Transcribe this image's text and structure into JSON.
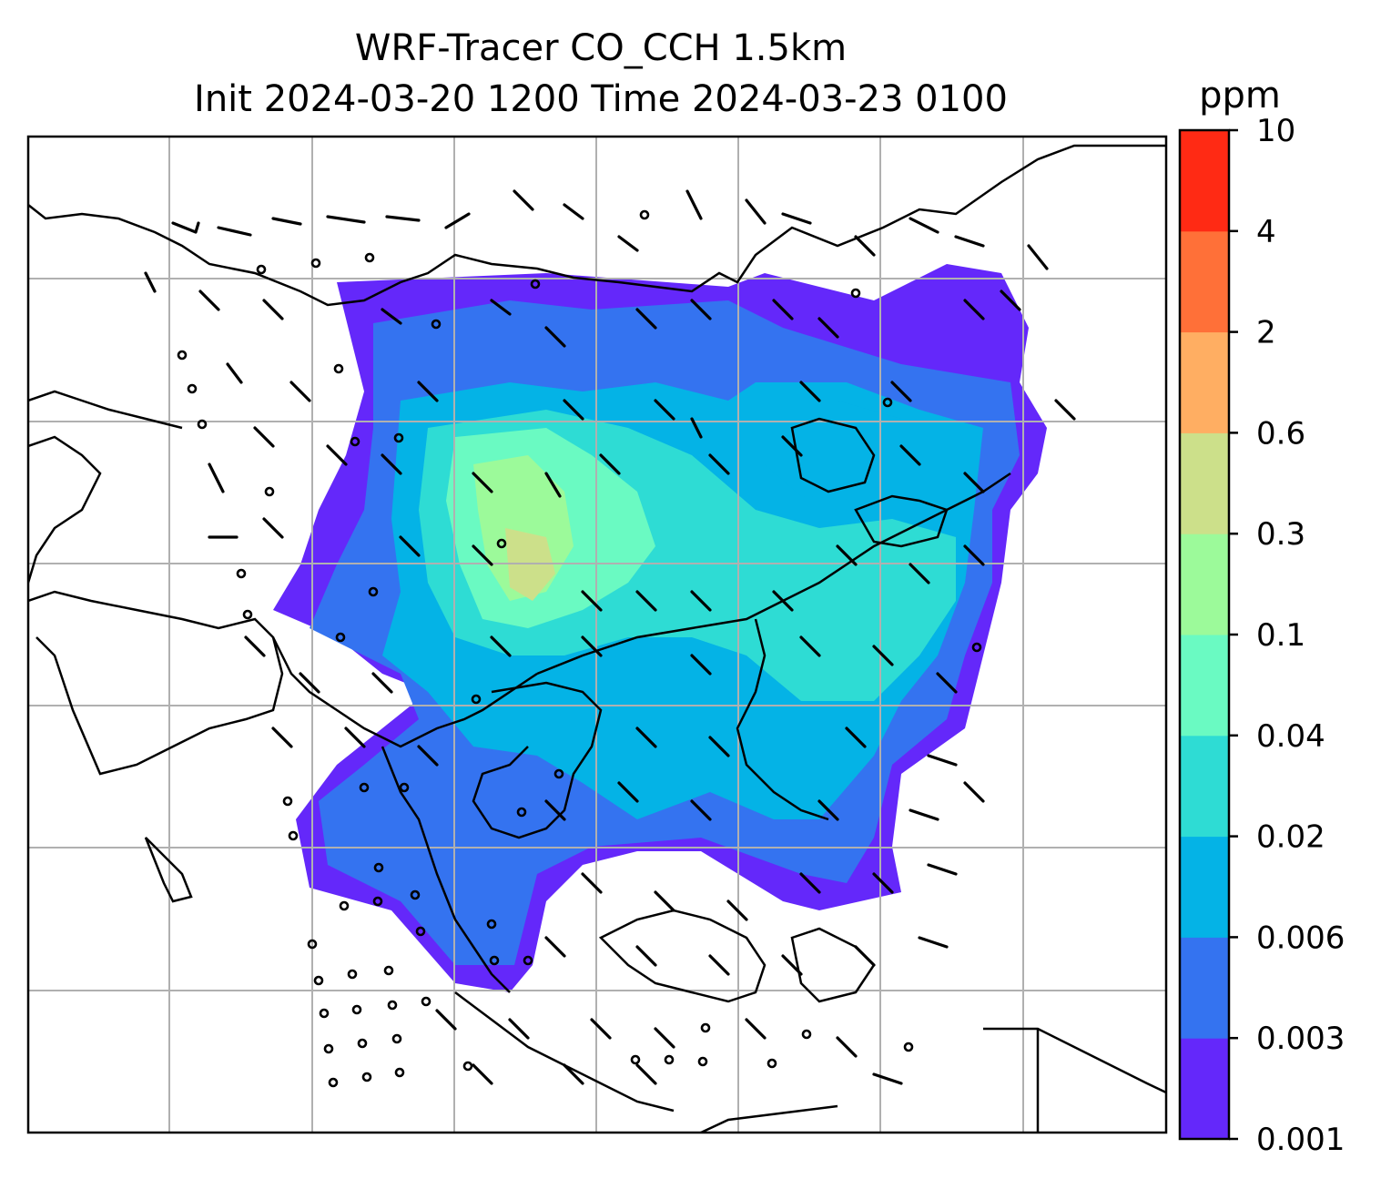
{
  "title": {
    "line1": "WRF-Tracer CO_CCH 1.5km",
    "line2": "Init 2024-03-20 1200 Time 2024-03-23 0100"
  },
  "colorbar": {
    "unit": "ppm",
    "levels": [
      "0.001",
      "0.003",
      "0.006",
      "0.02",
      "0.04",
      "0.1",
      "0.3",
      "0.6",
      "2",
      "4",
      "10"
    ],
    "colors": [
      "#6428fa",
      "#3473f0",
      "#04b3e6",
      "#2edcd4",
      "#6afac2",
      "#9cfa9a",
      "#cce08a",
      "#ffae62",
      "#ff7038",
      "#ff2a14"
    ]
  },
  "map": {
    "gridlines": true,
    "grid_color": "#b0b0b0",
    "symbols": [
      "wind-barbs",
      "calm-circles",
      "coastlines"
    ]
  }
}
